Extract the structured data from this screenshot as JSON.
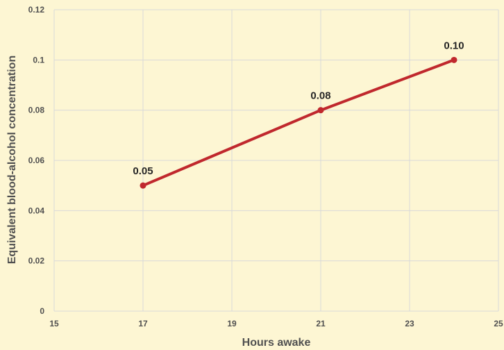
{
  "chart_data": {
    "type": "scatter",
    "xlabel": "Hours awake",
    "ylabel": "Equivalent blood-alcohol concentration",
    "xlim": [
      15,
      25
    ],
    "ylim": [
      0,
      0.12
    ],
    "x_ticks": [
      "15",
      "17",
      "19",
      "21",
      "23",
      "25"
    ],
    "y_ticks": [
      "0",
      "0.02",
      "0.04",
      "0.06",
      "0.08",
      "0.1",
      "0.12"
    ],
    "grid": true,
    "legend": "none",
    "series": [
      {
        "points": [
          {
            "x": 17,
            "y": 0.05,
            "label": "0.05"
          },
          {
            "x": 21,
            "y": 0.08,
            "label": "0.08"
          },
          {
            "x": 24,
            "y": 0.1,
            "label": "0.10"
          }
        ],
        "color": "#c0282d",
        "line": true
      }
    ],
    "colors": {
      "background": "#fdf6d3",
      "grid": "#d9d9d9",
      "series": "#c0282d"
    }
  }
}
